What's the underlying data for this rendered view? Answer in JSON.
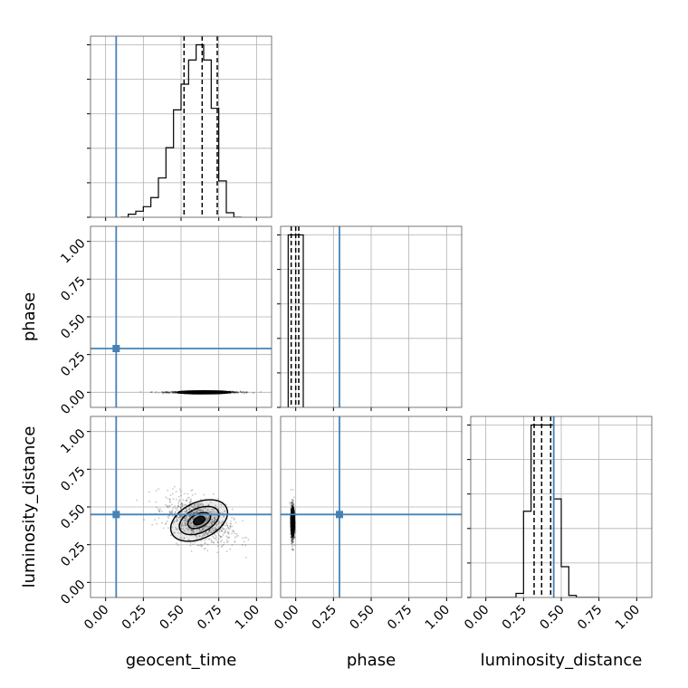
{
  "chart_data": {
    "type": "corner",
    "parameters": [
      "geocent_time",
      "phase",
      "luminosity_distance"
    ],
    "axis_range": [
      -0.1,
      1.1
    ],
    "tick_values": [
      0.0,
      0.25,
      0.5,
      0.75,
      1.0
    ],
    "tick_labels": [
      "0.00",
      "0.25",
      "0.50",
      "0.75",
      "1.00"
    ],
    "grid": true,
    "truth_color": "#4682b4",
    "truths": {
      "geocent_time": 0.07,
      "phase": 0.29,
      "luminosity_distance": 0.45
    },
    "histograms": [
      {
        "parameter": "geocent_time",
        "bin_edges": [
          0.1,
          0.15,
          0.2,
          0.25,
          0.3,
          0.35,
          0.4,
          0.45,
          0.5,
          0.55,
          0.6,
          0.65,
          0.7,
          0.75,
          0.8,
          0.85,
          0.9
        ],
        "counts": [
          0,
          2,
          4,
          7,
          13,
          26,
          46,
          71,
          88,
          104,
          114,
          104,
          72,
          24,
          3,
          0
        ],
        "quantiles": [
          0.52,
          0.64,
          0.74
        ]
      },
      {
        "parameter": "phase",
        "bin_edges": [
          -0.05,
          0.0,
          0.05
        ],
        "counts": [
          100,
          100
        ],
        "quantiles": [
          -0.03,
          0.0,
          0.02
        ]
      },
      {
        "parameter": "luminosity_distance",
        "bin_edges": [
          0.0,
          0.05,
          0.1,
          0.15,
          0.2,
          0.25,
          0.3,
          0.35,
          0.4,
          0.45,
          0.5,
          0.55,
          0.6,
          0.65,
          0.7,
          0.75
        ],
        "counts": [
          0,
          0,
          0,
          0,
          2,
          42,
          84,
          84,
          84,
          48,
          15,
          1,
          0,
          0,
          0
        ],
        "quantiles": [
          0.32,
          0.37,
          0.43
        ]
      }
    ],
    "scatter_panels": [
      {
        "x": "geocent_time",
        "y": "phase",
        "center": [
          0.65,
          0.0
        ],
        "spread": [
          0.12,
          0.003
        ],
        "contours": [
          {
            "rx": 0.18,
            "ry": 0.01,
            "angle": 0
          },
          {
            "rx": 0.12,
            "ry": 0.007,
            "angle": 0
          },
          {
            "rx": 0.07,
            "ry": 0.004,
            "angle": 0
          }
        ]
      },
      {
        "x": "geocent_time",
        "y": "luminosity_distance",
        "center": [
          0.62,
          0.41
        ],
        "spread": [
          0.11,
          0.07
        ],
        "contours": [
          {
            "rx": 0.2,
            "ry": 0.12,
            "angle": -25
          },
          {
            "rx": 0.14,
            "ry": 0.08,
            "angle": -25
          },
          {
            "rx": 0.08,
            "ry": 0.045,
            "angle": -25
          },
          {
            "rx": 0.04,
            "ry": 0.025,
            "angle": -25
          }
        ]
      },
      {
        "x": "phase",
        "y": "luminosity_distance",
        "center": [
          -0.02,
          0.4
        ],
        "spread": [
          0.006,
          0.06
        ],
        "contours": [
          {
            "rx": 0.012,
            "ry": 0.1,
            "angle": 0
          },
          {
            "rx": 0.008,
            "ry": 0.06,
            "angle": 0
          }
        ]
      }
    ]
  }
}
